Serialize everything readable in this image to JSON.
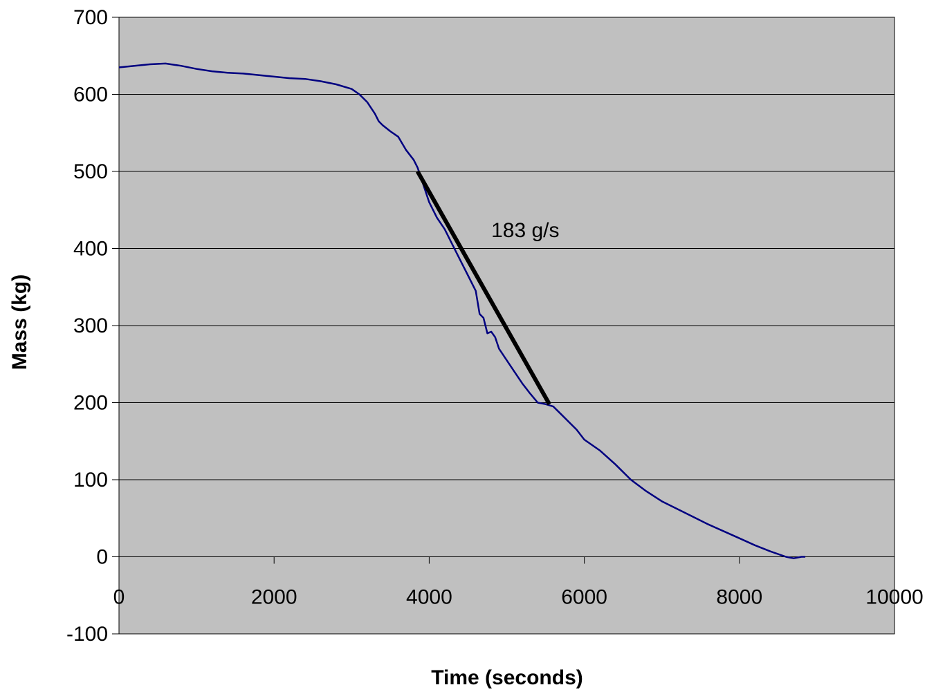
{
  "chart_data": {
    "type": "line",
    "title": "",
    "xlabel": "Time (seconds)",
    "ylabel": "Mass (kg)",
    "xlim": [
      0,
      10000
    ],
    "ylim": [
      -100,
      700
    ],
    "x_ticks": [
      0,
      2000,
      4000,
      6000,
      8000,
      10000
    ],
    "y_ticks": [
      -100,
      0,
      100,
      200,
      300,
      400,
      500,
      600,
      700
    ],
    "x_tick_labels": [
      "0",
      "2000",
      "4000",
      "6000",
      "8000",
      "10000"
    ],
    "y_tick_labels": [
      "-100",
      "0",
      "100",
      "200",
      "300",
      "400",
      "500",
      "600",
      "700"
    ],
    "grid": "horizontal",
    "legend": "none",
    "colors": {
      "plot_background": "#c0c0c0",
      "series": "#000080",
      "fit_line": "#000000",
      "gridline": "#000000"
    },
    "series": [
      {
        "x": [
          0,
          200,
          400,
          600,
          800,
          1000,
          1200,
          1400,
          1600,
          1800,
          2000,
          2200,
          2400,
          2600,
          2800,
          3000,
          3100,
          3200,
          3300,
          3350,
          3400,
          3500,
          3600,
          3700,
          3800,
          3850,
          3900,
          4000,
          4100,
          4200,
          4300,
          4400,
          4500,
          4600,
          4650,
          4700,
          4750,
          4800,
          4850,
          4900,
          5000,
          5100,
          5200,
          5300,
          5400,
          5500,
          5600,
          5700,
          5800,
          5900,
          6000,
          6200,
          6400,
          6600,
          6800,
          7000,
          7200,
          7400,
          7600,
          7800,
          8000,
          8200,
          8400,
          8600,
          8700,
          8800,
          8850
        ],
        "y": [
          635,
          637,
          639,
          640,
          637,
          633,
          630,
          628,
          627,
          625,
          623,
          621,
          620,
          617,
          613,
          607,
          600,
          590,
          575,
          565,
          560,
          552,
          545,
          528,
          515,
          505,
          490,
          460,
          440,
          425,
          405,
          385,
          365,
          345,
          315,
          310,
          290,
          292,
          285,
          270,
          255,
          240,
          225,
          212,
          200,
          198,
          195,
          185,
          175,
          165,
          152,
          138,
          120,
          100,
          85,
          72,
          62,
          52,
          42,
          33,
          24,
          15,
          7,
          0,
          -2,
          0,
          0
        ]
      }
    ],
    "fit_line": {
      "x": [
        3850,
        5550
      ],
      "y": [
        500,
        198
      ]
    },
    "annotations": [
      {
        "text": "183 g/s",
        "x": 4800,
        "y": 415
      }
    ]
  }
}
